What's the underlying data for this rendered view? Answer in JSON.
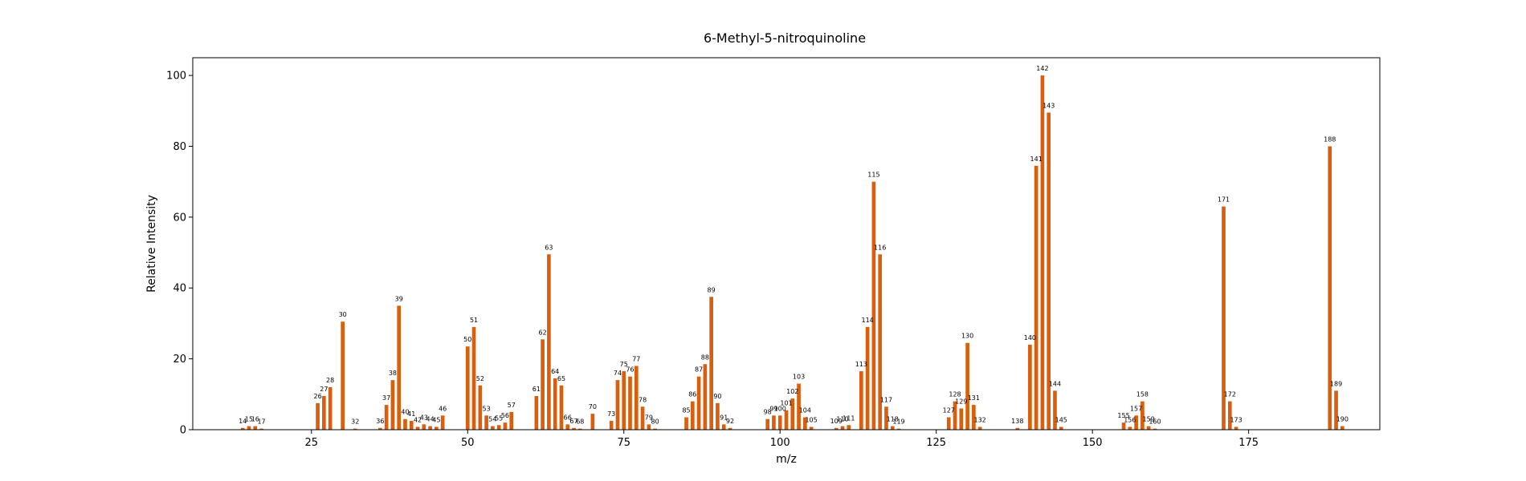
{
  "chart_data": {
    "type": "bar",
    "title": "6-Methyl-5-nitroquinoline",
    "xlabel": "m/z",
    "ylabel": "Relative Intensity",
    "xlim": [
      6,
      196
    ],
    "ylim": [
      0,
      105
    ],
    "xticks": [
      25,
      50,
      75,
      100,
      125,
      150,
      175
    ],
    "yticks": [
      0,
      20,
      40,
      60,
      80,
      100
    ],
    "bar_color": "#d95f0e",
    "grid": false,
    "x": [
      14,
      15,
      16,
      17,
      26,
      27,
      28,
      30,
      32,
      36,
      37,
      38,
      39,
      40,
      41,
      42,
      43,
      44,
      45,
      46,
      50,
      51,
      52,
      53,
      54,
      55,
      56,
      57,
      61,
      62,
      63,
      64,
      65,
      66,
      67,
      68,
      70,
      73,
      74,
      75,
      76,
      77,
      78,
      79,
      80,
      85,
      86,
      87,
      88,
      89,
      90,
      91,
      92,
      98,
      99,
      100,
      101,
      102,
      103,
      104,
      105,
      109,
      110,
      111,
      113,
      114,
      115,
      116,
      117,
      118,
      119,
      127,
      128,
      129,
      130,
      131,
      132,
      138,
      140,
      141,
      142,
      143,
      144,
      145,
      155,
      156,
      157,
      158,
      159,
      160,
      171,
      172,
      173,
      188,
      189,
      190
    ],
    "values": [
      0.5,
      1,
      1,
      0.3,
      7.5,
      9.5,
      12,
      30.5,
      0.3,
      0.5,
      7,
      14,
      35,
      3,
      2.5,
      0.8,
      1.5,
      1,
      0.8,
      4,
      23.5,
      29,
      12.5,
      4,
      1,
      1.3,
      2,
      5,
      9.5,
      25.5,
      49.5,
      14.5,
      12.5,
      1.5,
      0.5,
      0.3,
      4.5,
      2.5,
      14,
      16.5,
      15,
      18,
      6.5,
      1.5,
      0.3,
      3.5,
      8,
      15,
      18.5,
      37.5,
      7.5,
      1.5,
      0.5,
      3,
      4,
      4,
      5.5,
      8.8,
      13,
      3.5,
      0.8,
      0.5,
      1,
      1.3,
      16.5,
      29,
      70,
      49.5,
      6.5,
      1,
      0.3,
      3.5,
      8,
      6,
      24.5,
      7,
      0.8,
      0.5,
      24,
      74.5,
      100,
      89.5,
      11,
      0.8,
      2,
      0.8,
      4,
      8,
      1,
      0.3,
      63,
      8,
      0.8,
      80,
      11,
      1
    ],
    "labels": [
      "14",
      "15",
      "16",
      "17",
      "26",
      "27",
      "28",
      "30",
      "32",
      "36",
      "37",
      "38",
      "39",
      "40",
      "41",
      "42",
      "43",
      "44",
      "45",
      "46",
      "50",
      "51",
      "52",
      "53",
      "54",
      "55",
      "56",
      "57",
      "61",
      "62",
      "63",
      "64",
      "65",
      "66",
      "67",
      "68",
      "70",
      "73",
      "74",
      "75",
      "76",
      "77",
      "78",
      "79",
      "80",
      "85",
      "86",
      "87",
      "88",
      "89",
      "90",
      "91",
      "92",
      "98",
      "99",
      "100",
      "101",
      "102",
      "103",
      "104",
      "105",
      "109",
      "110",
      "111",
      "113",
      "114",
      "115",
      "116",
      "117",
      "118",
      "119",
      "127",
      "128",
      "129",
      "130",
      "131",
      "132",
      "138",
      "140",
      "141",
      "142",
      "143",
      "144",
      "145",
      "155",
      "156",
      "157",
      "158",
      "159",
      "160",
      "171",
      "172",
      "173",
      "188",
      "189",
      "190"
    ]
  }
}
